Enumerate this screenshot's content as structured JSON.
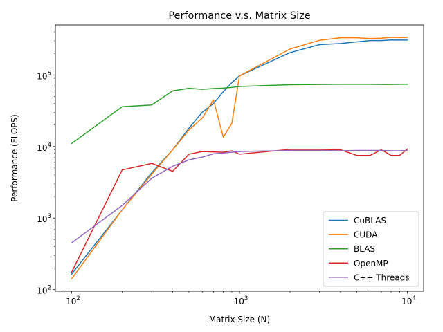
{
  "chart_data": {
    "type": "line",
    "title": "Performance v.s. Matrix Size",
    "xlabel": "Matrix Size (N)",
    "ylabel": "Performance (FLOPS)",
    "xscale": "log",
    "yscale": "log",
    "xlim": [
      80,
      12500
    ],
    "ylim": [
      95,
      500000
    ],
    "x_ticks": [
      {
        "value": 100,
        "base": "10",
        "exp": "2"
      },
      {
        "value": 1000,
        "base": "10",
        "exp": "3"
      },
      {
        "value": 10000,
        "base": "10",
        "exp": "4"
      }
    ],
    "y_ticks": [
      {
        "value": 100,
        "base": "10",
        "exp": "2"
      },
      {
        "value": 1000,
        "base": "10",
        "exp": "3"
      },
      {
        "value": 10000,
        "base": "10",
        "exp": "4"
      },
      {
        "value": 100000,
        "base": "10",
        "exp": "5"
      }
    ],
    "grid": false,
    "legend_position": "lower-right",
    "series": [
      {
        "name": "CuBLAS",
        "color": "#1f77b4",
        "points": [
          [
            100,
            165
          ],
          [
            200,
            1300
          ],
          [
            300,
            4300
          ],
          [
            400,
            9000
          ],
          [
            500,
            18000
          ],
          [
            600,
            30000
          ],
          [
            700,
            40000
          ],
          [
            800,
            58000
          ],
          [
            900,
            78000
          ],
          [
            1000,
            97000
          ],
          [
            2000,
            205000
          ],
          [
            3000,
            265000
          ],
          [
            4000,
            275000
          ],
          [
            5000,
            290000
          ],
          [
            6000,
            302000
          ],
          [
            7000,
            302000
          ],
          [
            8000,
            308000
          ],
          [
            9000,
            307000
          ],
          [
            10000,
            307000
          ]
        ]
      },
      {
        "name": "CUDA",
        "color": "#ff7f0e",
        "points": [
          [
            100,
            142
          ],
          [
            200,
            1300
          ],
          [
            300,
            4100
          ],
          [
            400,
            9000
          ],
          [
            500,
            17000
          ],
          [
            600,
            25000
          ],
          [
            700,
            45000
          ],
          [
            800,
            13500
          ],
          [
            900,
            21000
          ],
          [
            1000,
            97000
          ],
          [
            2000,
            230000
          ],
          [
            3000,
            305000
          ],
          [
            4000,
            330000
          ],
          [
            5000,
            330000
          ],
          [
            6000,
            322000
          ],
          [
            7000,
            326000
          ],
          [
            8000,
            335000
          ],
          [
            9000,
            332000
          ],
          [
            10000,
            335000
          ]
        ]
      },
      {
        "name": "BLAS",
        "color": "#2ca02c",
        "points": [
          [
            100,
            11000
          ],
          [
            200,
            36000
          ],
          [
            300,
            38000
          ],
          [
            400,
            60000
          ],
          [
            500,
            65000
          ],
          [
            600,
            63000
          ],
          [
            700,
            64500
          ],
          [
            800,
            65500
          ],
          [
            900,
            67000
          ],
          [
            1000,
            69000
          ],
          [
            2000,
            73000
          ],
          [
            3000,
            73500
          ],
          [
            4000,
            74000
          ],
          [
            5000,
            74000
          ],
          [
            6000,
            74000
          ],
          [
            7000,
            73500
          ],
          [
            8000,
            73500
          ],
          [
            9000,
            74000
          ],
          [
            10000,
            74000
          ]
        ]
      },
      {
        "name": "OpenMP",
        "color": "#d62728",
        "points": [
          [
            100,
            175
          ],
          [
            200,
            4700
          ],
          [
            300,
            5800
          ],
          [
            400,
            4500
          ],
          [
            500,
            7800
          ],
          [
            600,
            8500
          ],
          [
            700,
            8400
          ],
          [
            800,
            8300
          ],
          [
            900,
            8700
          ],
          [
            1000,
            7800
          ],
          [
            2000,
            9100
          ],
          [
            3000,
            9100
          ],
          [
            4000,
            9000
          ],
          [
            5000,
            7500
          ],
          [
            6000,
            7500
          ],
          [
            7000,
            9000
          ],
          [
            8000,
            7500
          ],
          [
            9000,
            7500
          ],
          [
            10000,
            9200
          ]
        ]
      },
      {
        "name": "C++ Threads",
        "color": "#9467bd",
        "points": [
          [
            100,
            450
          ],
          [
            200,
            1500
          ],
          [
            300,
            3600
          ],
          [
            400,
            5300
          ],
          [
            500,
            6500
          ],
          [
            600,
            7100
          ],
          [
            700,
            7900
          ],
          [
            800,
            8100
          ],
          [
            900,
            8300
          ],
          [
            1000,
            8500
          ],
          [
            2000,
            8800
          ],
          [
            3000,
            8800
          ],
          [
            4000,
            8700
          ],
          [
            5000,
            8800
          ],
          [
            6000,
            8800
          ],
          [
            7000,
            8800
          ],
          [
            8000,
            8700
          ],
          [
            9000,
            8700
          ],
          [
            10000,
            8800
          ]
        ]
      }
    ]
  }
}
